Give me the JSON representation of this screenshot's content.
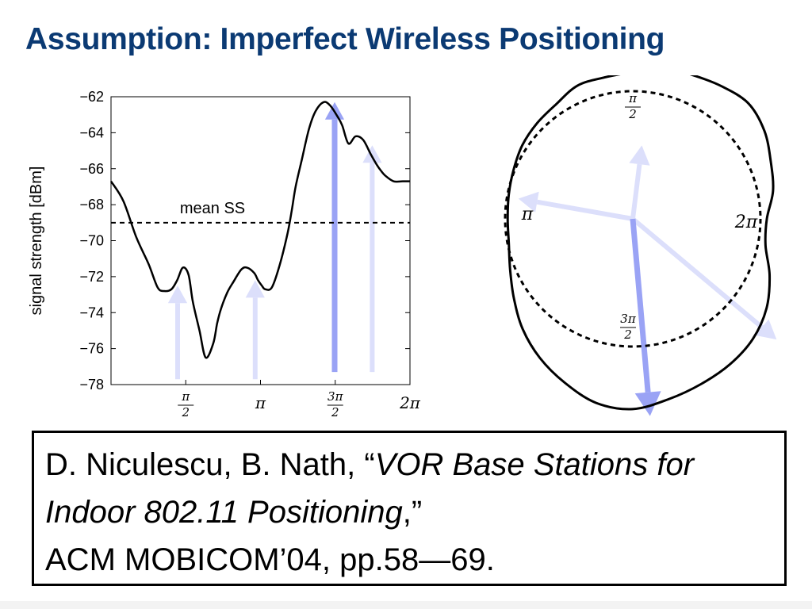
{
  "slide": {
    "title": "Assumption: Imperfect Wireless Positioning"
  },
  "citation": {
    "authors": "D. Niculescu, B. Nath, “",
    "title": "VOR Base Stations for Indoor 802.11 Positioning",
    "after_title": ",”",
    "venue": "ACM MOBICOM’04, pp.58—69."
  },
  "colors": {
    "arrow_dark": "#9aa3f5",
    "arrow_light": "#dcdffb",
    "title": "#0b3a73"
  },
  "chart_data": [
    {
      "type": "line",
      "ylabel": "signal strength [dBm]",
      "ylim": [
        -78,
        -62
      ],
      "xlim": [
        0,
        6.2832
      ],
      "y_ticks": [
        "−62",
        "−64",
        "−66",
        "−68",
        "−70",
        "−72",
        "−74",
        "−76",
        "−78"
      ],
      "y_tick_values": [
        -62,
        -64,
        -66,
        -68,
        -70,
        -72,
        -74,
        -76,
        -78
      ],
      "x_tick_values": [
        1.5708,
        3.1416,
        4.7124,
        6.2832
      ],
      "x_tick_labels": [
        {
          "num": "π",
          "den": "2"
        },
        {
          "num": "",
          "den": "",
          "text": "π"
        },
        {
          "num": "3π",
          "den": "2"
        },
        {
          "num": "",
          "den": "",
          "text": "2π"
        }
      ],
      "mean_ss": {
        "label": "mean SS",
        "value": -69
      },
      "series": [
        {
          "x": [
            0,
            0.26,
            0.53,
            0.79,
            0.98,
            1.12,
            1.27,
            1.39,
            1.51,
            1.63,
            1.72,
            1.86,
            1.99,
            2.15,
            2.23,
            2.31,
            2.44,
            2.57,
            2.74,
            2.86,
            3.01,
            3.09,
            3.17,
            3.24,
            3.38,
            3.54,
            3.71,
            3.8,
            3.88,
            4.01,
            4.16,
            4.3,
            4.47,
            4.61,
            4.76,
            4.86,
            4.99,
            5.14,
            5.3,
            5.46,
            5.59,
            5.67,
            5.77,
            5.94,
            6.13,
            6.28
          ],
          "values": [
            -66.7,
            -67.8,
            -69.8,
            -71.3,
            -72.6,
            -72.8,
            -72.7,
            -72.2,
            -71.5,
            -71.9,
            -73.4,
            -75.0,
            -76.5,
            -75.7,
            -74.6,
            -73.8,
            -72.9,
            -72.3,
            -71.6,
            -71.5,
            -71.8,
            -72.2,
            -72.5,
            -72.7,
            -72.6,
            -71.4,
            -69.6,
            -68.3,
            -67.0,
            -65.5,
            -63.8,
            -62.8,
            -62.3,
            -62.5,
            -63.1,
            -63.6,
            -64.6,
            -64.2,
            -64.4,
            -65.2,
            -65.8,
            -66.1,
            -66.4,
            -66.7,
            -66.7,
            -66.7
          ]
        }
      ],
      "arrows": [
        {
          "x": 1.4,
          "from": -77.7,
          "to": -72.5,
          "strength": "light"
        },
        {
          "x": 3.03,
          "from": -77.7,
          "to": -72.2,
          "strength": "light"
        },
        {
          "x": 4.7,
          "from": -77.3,
          "to": -62.3,
          "strength": "dark"
        },
        {
          "x": 5.49,
          "from": -77.3,
          "to": -64.7,
          "strength": "light"
        }
      ]
    },
    {
      "type": "polar",
      "labels": [
        {
          "text": "π",
          "num": "π",
          "den": "2",
          "angle_deg": 90
        },
        {
          "text": "π",
          "angle_deg": 180
        },
        {
          "text": "2π",
          "angle_deg": 0
        },
        {
          "text": "3π",
          "num": "3π",
          "den": "2",
          "angle_deg": 270
        }
      ],
      "reference_circle_radius": 1,
      "pattern_radius": [
        1.05,
        1.12,
        1.17,
        1.24,
        1.28,
        1.25,
        1.22,
        1.21,
        1.15,
        1.13,
        1.13,
        1.08,
        1.06,
        1.04,
        1.01,
        0.99,
        0.98,
        0.99,
        1.04,
        1.12,
        1.22,
        1.31,
        1.39,
        1.47,
        1.49,
        1.44,
        1.4,
        1.37,
        1.33,
        1.26,
        1.16,
        1.06
      ],
      "arrows": [
        {
          "angle_deg": 83,
          "length": 0.58,
          "strength": "light"
        },
        {
          "angle_deg": 170,
          "length": 0.91,
          "strength": "light"
        },
        {
          "angle_deg": 320,
          "length": 1.47,
          "strength": "light"
        },
        {
          "angle_deg": 275,
          "length": 1.55,
          "strength": "dark"
        }
      ]
    }
  ]
}
